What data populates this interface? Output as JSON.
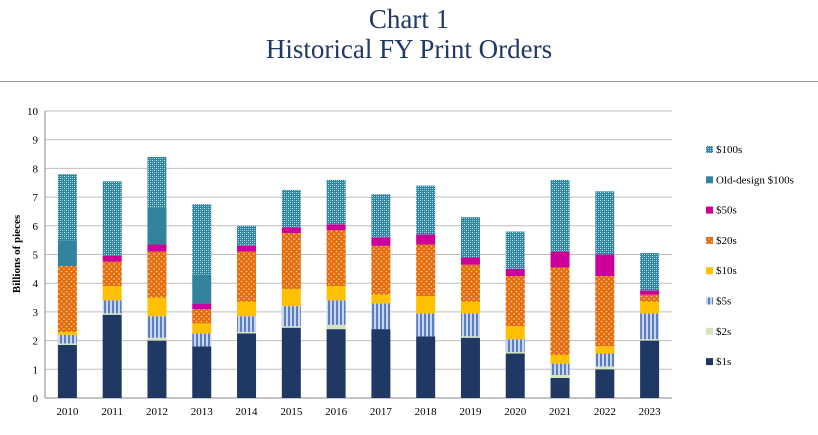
{
  "header": {
    "title_line1": "Chart 1",
    "title_line2": "Historical FY Print Orders"
  },
  "chart_data": {
    "type": "bar",
    "stacked": true,
    "ylabel": "Billions of pieces",
    "xlabel": "",
    "ylim": [
      0,
      10
    ],
    "yticks": [
      0,
      1,
      2,
      3,
      4,
      5,
      6,
      7,
      8,
      9,
      10
    ],
    "grid": true,
    "legend_position": "right",
    "categories": [
      "2010",
      "2011",
      "2012",
      "2013",
      "2014",
      "2015",
      "2016",
      "2017",
      "2018",
      "2019",
      "2020",
      "2021",
      "2022",
      "2023"
    ],
    "series": [
      {
        "name": "$1s",
        "color": "#1f3864",
        "pattern": "solid",
        "values": [
          1.85,
          2.9,
          2.0,
          1.8,
          2.25,
          2.45,
          2.4,
          2.4,
          2.15,
          2.1,
          1.55,
          0.7,
          1.0,
          2.0
        ]
      },
      {
        "name": "$2s",
        "color": "#d6e4bc",
        "pattern": "solid",
        "values": [
          0.05,
          0.05,
          0.1,
          0.0,
          0.05,
          0.05,
          0.15,
          0.0,
          0.0,
          0.05,
          0.05,
          0.1,
          0.1,
          0.05
        ]
      },
      {
        "name": "$5s",
        "color": "#8eaad8",
        "pattern": "vstripes",
        "values": [
          0.3,
          0.45,
          0.75,
          0.45,
          0.55,
          0.7,
          0.85,
          0.9,
          0.8,
          0.8,
          0.45,
          0.4,
          0.45,
          0.9
        ]
      },
      {
        "name": "$10s",
        "color": "#ffc000",
        "pattern": "solid",
        "values": [
          0.1,
          0.5,
          0.65,
          0.35,
          0.5,
          0.6,
          0.5,
          0.3,
          0.6,
          0.4,
          0.45,
          0.3,
          0.25,
          0.4
        ]
      },
      {
        "name": "$20s",
        "color": "#e46c0a",
        "pattern": "dots",
        "values": [
          2.3,
          0.85,
          1.6,
          0.5,
          1.75,
          1.95,
          1.95,
          1.7,
          1.8,
          1.3,
          1.75,
          3.05,
          2.45,
          0.25
        ]
      },
      {
        "name": "$50s",
        "color": "#cc0099",
        "pattern": "solid",
        "values": [
          0.0,
          0.2,
          0.25,
          0.2,
          0.2,
          0.2,
          0.2,
          0.3,
          0.35,
          0.25,
          0.25,
          0.55,
          0.75,
          0.15
        ]
      },
      {
        "name": "Old-design $100s",
        "color": "#31849b",
        "pattern": "solid",
        "values": [
          0.9,
          0.0,
          1.3,
          1.0,
          0.0,
          0.0,
          0.0,
          0.0,
          0.0,
          0.0,
          0.0,
          0.0,
          0.0,
          0.0
        ]
      },
      {
        "name": "$100s",
        "color": "#31849b",
        "pattern": "crosshatch",
        "values": [
          2.3,
          2.6,
          1.75,
          2.45,
          0.7,
          1.3,
          1.55,
          1.5,
          1.7,
          1.4,
          1.3,
          2.5,
          2.2,
          1.3
        ]
      }
    ]
  }
}
